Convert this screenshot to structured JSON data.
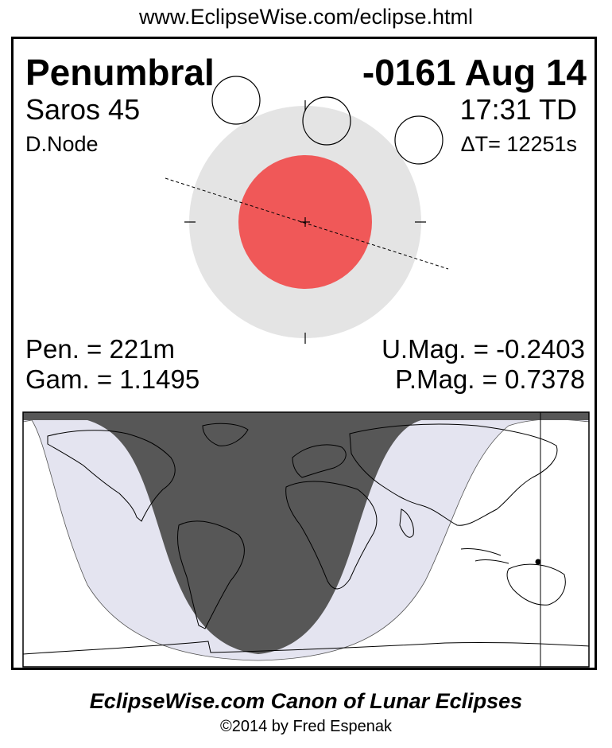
{
  "header": {
    "url": "www.EclipseWise.com/eclipse.html"
  },
  "eclipse": {
    "type": "Penumbral",
    "date": "-0161 Aug 14",
    "saros": "Saros  45",
    "time": "17:31 TD",
    "node": "D.Node",
    "delta_t": "ΔT=  12251s"
  },
  "stats": {
    "pen": "Pen. = 221m",
    "gam": "Gam. = 1.1495",
    "umag": "U.Mag. = -0.2403",
    "pmag": "P.Mag. = 0.7378"
  },
  "colors": {
    "penumbra": "#e4e4e4",
    "umbra": "#f05858",
    "night": "#575757",
    "penumbral_zone": "#e4e4f0",
    "map_bg": "#ffffff"
  },
  "footer": {
    "canon": "EclipseWise.com Canon of Lunar Eclipses",
    "copyright": "©2014 by Fred Espenak"
  }
}
